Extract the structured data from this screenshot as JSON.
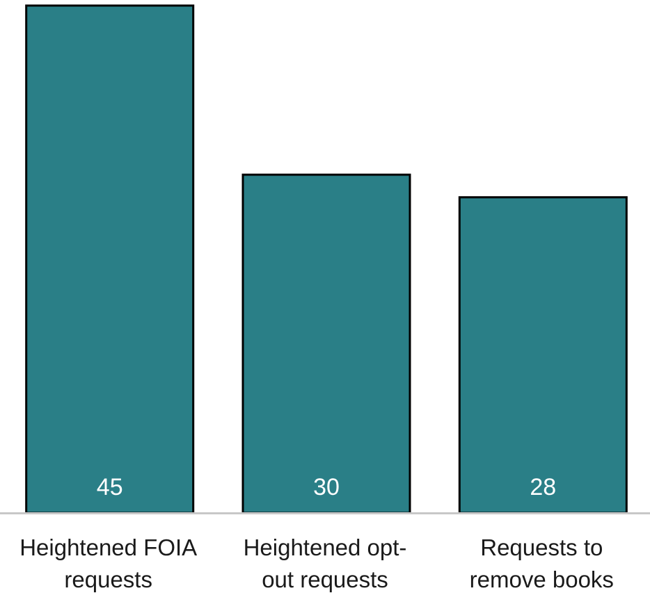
{
  "chart_data": {
    "type": "bar",
    "categories": [
      [
        "Heightened FOIA",
        "requests"
      ],
      [
        "Heightened opt-",
        "out requests"
      ],
      [
        "Requests to",
        "remove books"
      ]
    ],
    "values": [
      45,
      30,
      28
    ],
    "value_labels": [
      "45",
      "30",
      "28"
    ],
    "title": "",
    "xlabel": "",
    "ylabel": "",
    "ylim": [
      0,
      45
    ],
    "grid": false,
    "legend": "none",
    "colors": {
      "bar_fill": "#2a7f87",
      "bar_outline": "#000000",
      "value_text": "#ffffff",
      "axis_line": "#c8c8c8"
    }
  }
}
